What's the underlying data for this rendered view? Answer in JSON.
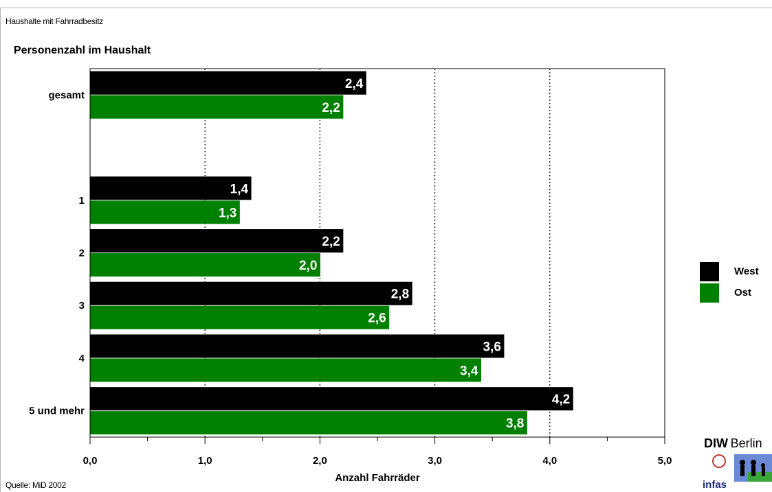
{
  "header": {
    "title": "Haushalte mit Fahrradbesitz",
    "source": "Quelle: MiD 2002"
  },
  "chart_data": {
    "type": "bar",
    "orientation": "horizontal",
    "title": "Personenzahl im Haushalt",
    "xlabel": "Anzahl Fahrräder",
    "ylabel": "",
    "categories": [
      "gesamt",
      "",
      "1",
      "2",
      "3",
      "4",
      "5 und mehr"
    ],
    "series": [
      {
        "name": "West",
        "values": [
          2.4,
          null,
          1.4,
          2.2,
          2.8,
          3.6,
          4.2
        ],
        "labels": [
          "2,4",
          "",
          "1,4",
          "2,2",
          "2,8",
          "3,6",
          "4,2"
        ]
      },
      {
        "name": "Ost",
        "values": [
          2.2,
          null,
          1.3,
          2.0,
          2.6,
          3.4,
          3.8
        ],
        "labels": [
          "2,2",
          "",
          "1,3",
          "2,0",
          "2,6",
          "3,4",
          "3,8"
        ]
      }
    ],
    "xlim": [
      0,
      5
    ],
    "x_ticks": [
      "0,0",
      "1,0",
      "2,0",
      "3,0",
      "4,0",
      "5,0"
    ],
    "grid": "vertical dotted",
    "legend": "right",
    "colors": {
      "West": "#000000",
      "Ost": "#008000"
    }
  },
  "logo": {
    "brand": "DIW",
    "city": "Berlin",
    "partner": "infas"
  }
}
